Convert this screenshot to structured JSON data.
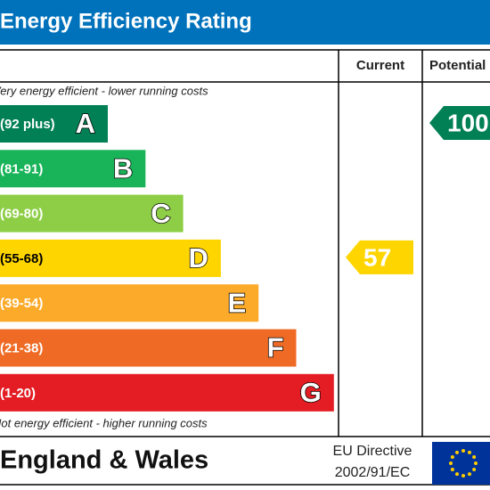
{
  "title": "Energy Efficiency Rating",
  "headers": {
    "current": "Current",
    "potential": "Potential"
  },
  "top_note": "Very energy efficient - lower running costs",
  "bottom_note": "Not energy efficient - higher running costs",
  "bands": [
    {
      "range": "(92 plus)",
      "letter": "A",
      "color": "#008054",
      "text_color": "#ffffff"
    },
    {
      "range": "(81-91)",
      "letter": "B",
      "color": "#19b459",
      "text_color": "#ffffff"
    },
    {
      "range": "(69-80)",
      "letter": "C",
      "color": "#8dce46",
      "text_color": "#ffffff"
    },
    {
      "range": "(55-68)",
      "letter": "D",
      "color": "#ffd500",
      "text_color": "#000000"
    },
    {
      "range": "(39-54)",
      "letter": "E",
      "color": "#fcaa2a",
      "text_color": "#ffffff"
    },
    {
      "range": "(21-38)",
      "letter": "F",
      "color": "#ef6b25",
      "text_color": "#ffffff"
    },
    {
      "range": "(1-20)",
      "letter": "G",
      "color": "#e31d23",
      "text_color": "#ffffff"
    }
  ],
  "current": {
    "value": 57,
    "band": 3
  },
  "potential": {
    "value": 100,
    "band": 0
  },
  "footer": {
    "region": "England & Wales",
    "directive": [
      "EU Directive",
      "2002/91/EC"
    ]
  }
}
